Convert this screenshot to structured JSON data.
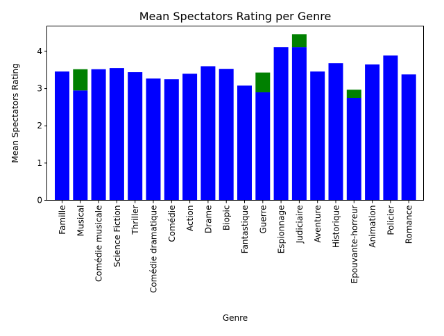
{
  "chart_data": {
    "type": "bar",
    "title": "Mean Spectators Rating per Genre",
    "xlabel": "Genre",
    "ylabel": "Mean Spectators Rating",
    "ylim": [
      0,
      4.68
    ],
    "yticks": [
      0,
      1,
      2,
      3,
      4
    ],
    "grid": false,
    "categories": [
      "Famille",
      "Musical",
      "Comédie musicale",
      "Science Fiction",
      "Thriller",
      "Comédie dramatique",
      "Comédie",
      "Action",
      "Drame",
      "Biopic",
      "Fantastique",
      "Guerre",
      "Espionnage",
      "Judiciaire",
      "Aventure",
      "Historique",
      "Epouvante-horreur",
      "Animation",
      "Policier",
      "Romance"
    ],
    "series": [
      {
        "color": "#0000ff",
        "values": [
          3.46,
          2.95,
          3.52,
          3.55,
          3.44,
          3.27,
          3.25,
          3.4,
          3.6,
          3.53,
          3.08,
          2.9,
          4.11,
          4.11,
          3.46,
          3.68,
          2.75,
          3.65,
          3.89,
          3.38
        ]
      },
      {
        "color": "#008000",
        "values": [
          0,
          0.57,
          0,
          0,
          0,
          0,
          0,
          0,
          0,
          0,
          0,
          0.53,
          0,
          0.35,
          0,
          0,
          0.22,
          0,
          0,
          0
        ]
      }
    ]
  }
}
